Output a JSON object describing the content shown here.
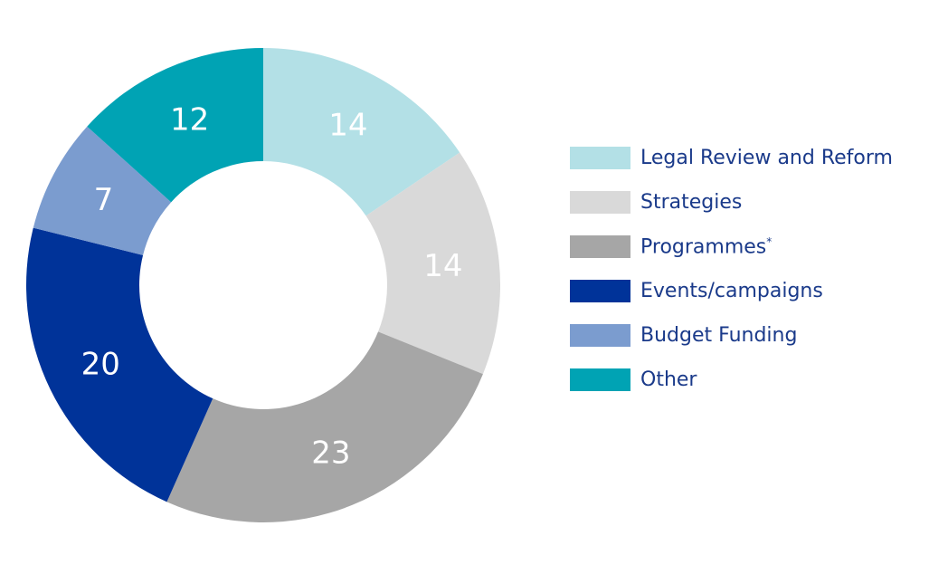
{
  "chart_data": {
    "type": "pie",
    "variant": "donut",
    "title": "",
    "categories": [
      "Legal Review and Reform",
      "Strategies",
      "Programmes",
      "Events/campaigns",
      "Budget Funding",
      "Other"
    ],
    "values": [
      14,
      14,
      23,
      20,
      7,
      12
    ],
    "colors": [
      "#b3e0e6",
      "#d9d9d9",
      "#a6a6a6",
      "#003399",
      "#7b9ccf",
      "#00a3b4"
    ],
    "legend_placement": "right",
    "legend_superscripts": [
      "",
      "",
      "*",
      "",
      "",
      ""
    ]
  }
}
